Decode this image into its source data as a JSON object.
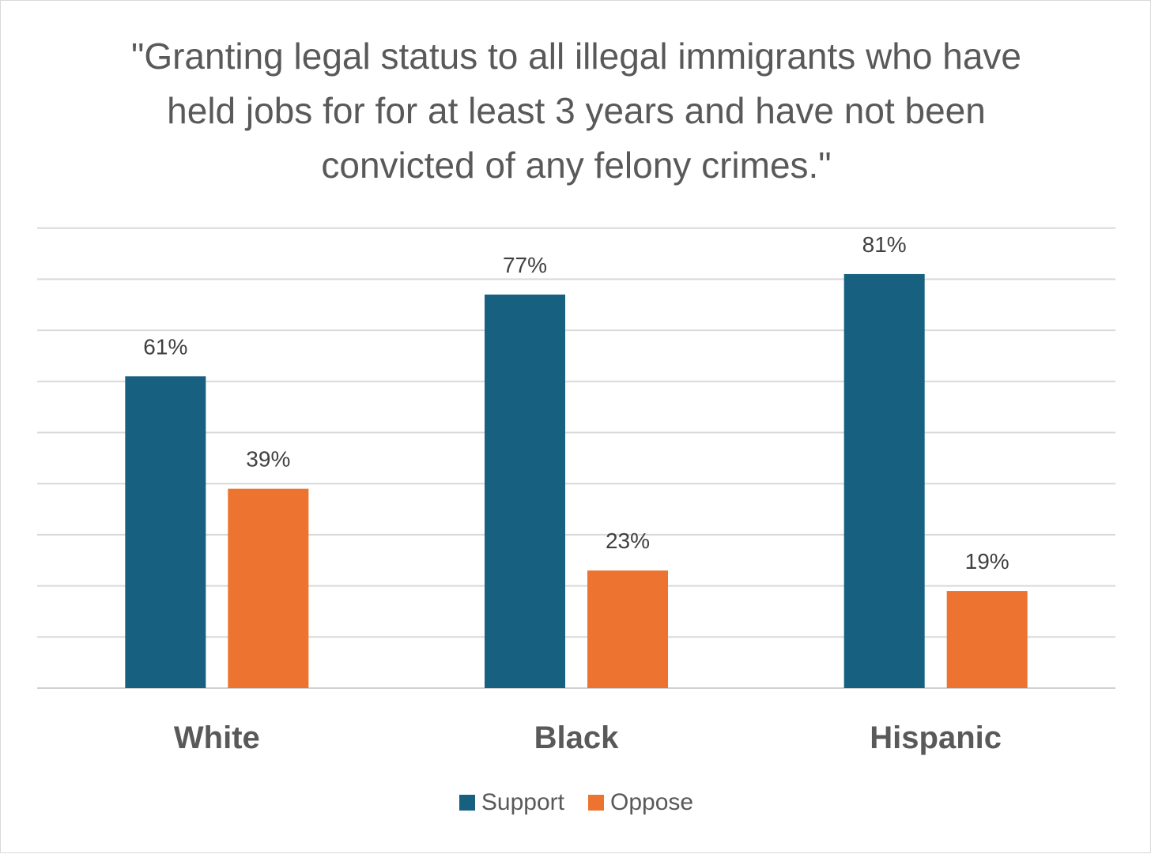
{
  "chart_data": {
    "type": "bar",
    "title": "\"Granting legal status to all illegal immigrants who have held jobs for for at least 3 years and have not been convicted of any felony crimes.\"",
    "categories": [
      "White",
      "Black",
      "Hispanic"
    ],
    "series": [
      {
        "name": "Support",
        "values": [
          61,
          77,
          81
        ],
        "labels": [
          "61%",
          "77%",
          "81%"
        ],
        "color": "#17607f"
      },
      {
        "name": "Oppose",
        "values": [
          39,
          23,
          19
        ],
        "labels": [
          "39%",
          "23%",
          "19%"
        ],
        "color": "#ec7330"
      }
    ],
    "ylim": [
      0,
      90
    ],
    "gridlines": true,
    "y_tick_step": 10,
    "legend_position": "bottom"
  }
}
